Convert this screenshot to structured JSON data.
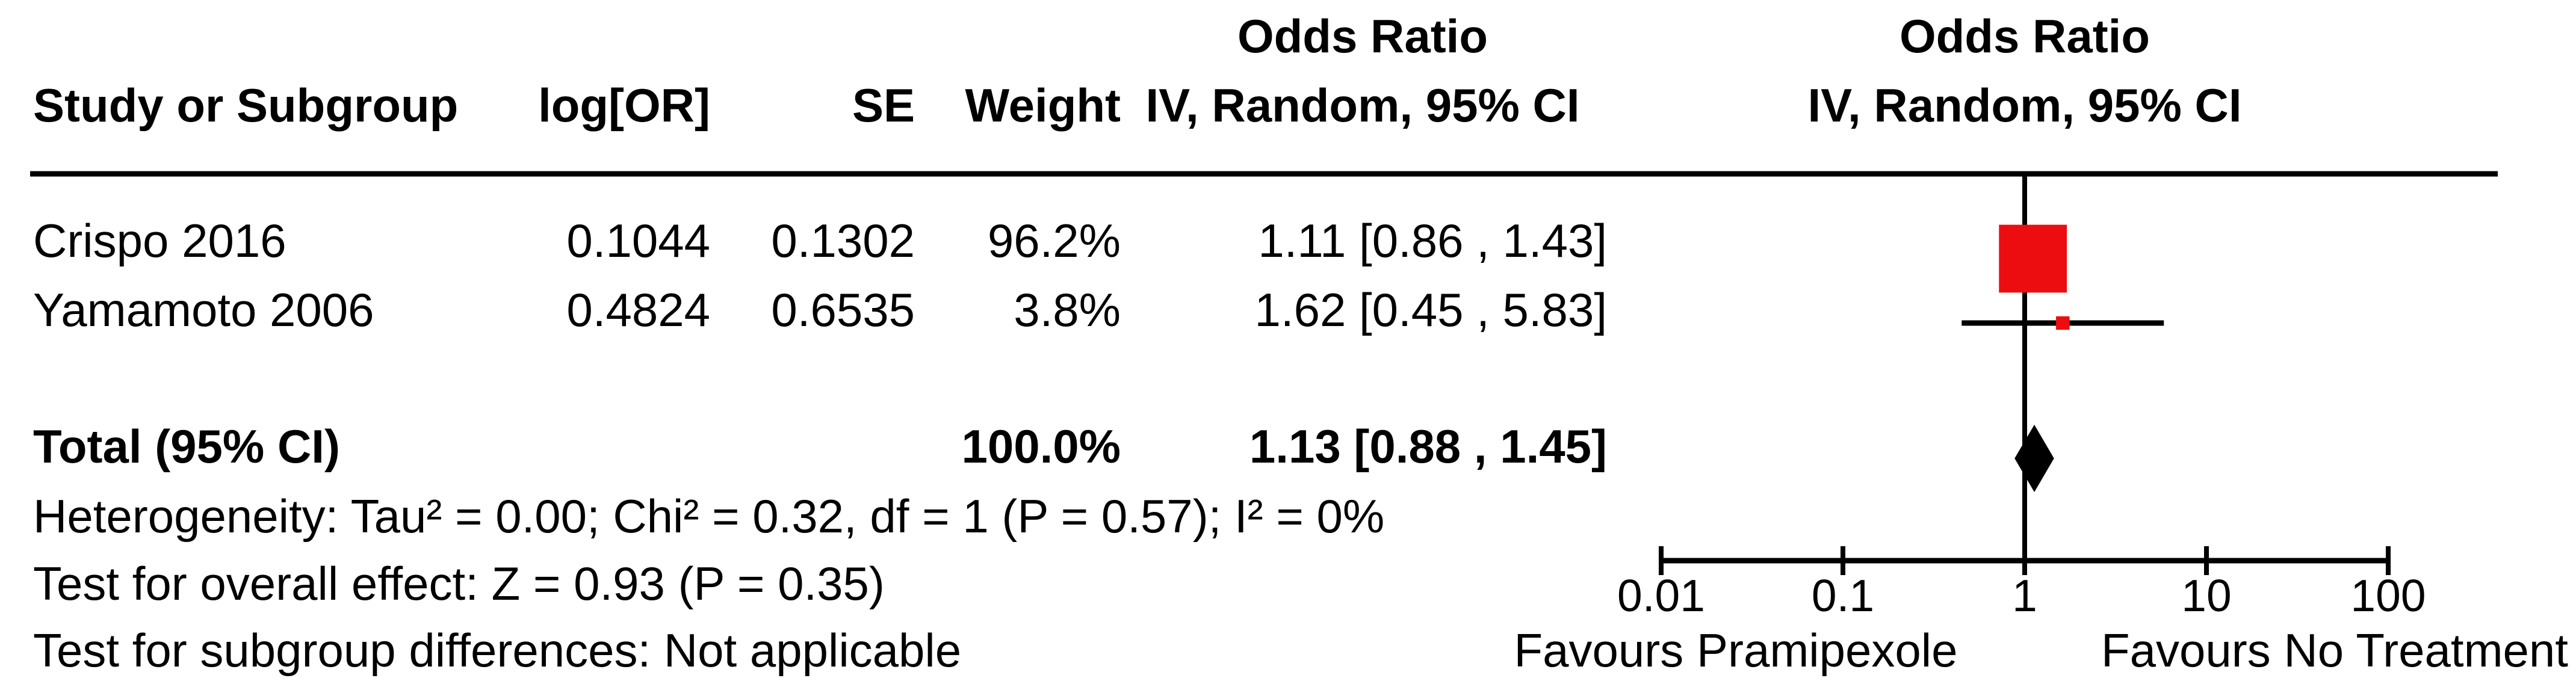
{
  "chart_data": {
    "type": "forest",
    "title_left": "Odds Ratio",
    "title_right": "Odds Ratio",
    "columns": {
      "study": "Study or Subgroup",
      "log_or": "log[OR]",
      "se": "SE",
      "weight": "Weight",
      "effect": "IV, Random, 95% CI",
      "effect_right": "IV, Random, 95% CI"
    },
    "studies": [
      {
        "name": "Crispo 2016",
        "log_or": "0.1044",
        "se": "0.1302",
        "weight": "96.2%",
        "weight_pct": 96.2,
        "or_ci_text": "1.11 [0.86 , 1.43]",
        "or": 1.11,
        "ci_low": 0.86,
        "ci_high": 1.43
      },
      {
        "name": "Yamamoto 2006",
        "log_or": "0.4824",
        "se": "0.6535",
        "weight": "3.8%",
        "weight_pct": 3.8,
        "or_ci_text": "1.62 [0.45 , 5.83]",
        "or": 1.62,
        "ci_low": 0.45,
        "ci_high": 5.83
      }
    ],
    "total": {
      "label": "Total (95% CI)",
      "weight": "100.0%",
      "or_ci_text": "1.13 [0.88 , 1.45]",
      "or": 1.13,
      "ci_low": 0.88,
      "ci_high": 1.45
    },
    "footnotes": {
      "heterogeneity": "Heterogeneity: Tau² = 0.00; Chi² = 0.32, df = 1 (P = 0.57); I² = 0%",
      "overall_effect": "Test for overall effect: Z = 0.93 (P = 0.35)",
      "subgroup_differences": "Test for subgroup differences: Not applicable"
    },
    "axis": {
      "scale": "log",
      "min": 0.01,
      "max": 100,
      "ticks": [
        "0.01",
        "0.1",
        "1",
        "10",
        "100"
      ]
    },
    "favours": {
      "left": "Favours Pramipexole",
      "right": "Favours No Treatment"
    },
    "colors": {
      "study_marker": "#EC0D11",
      "summary_diamond": "#000000",
      "line": "#000000"
    }
  }
}
